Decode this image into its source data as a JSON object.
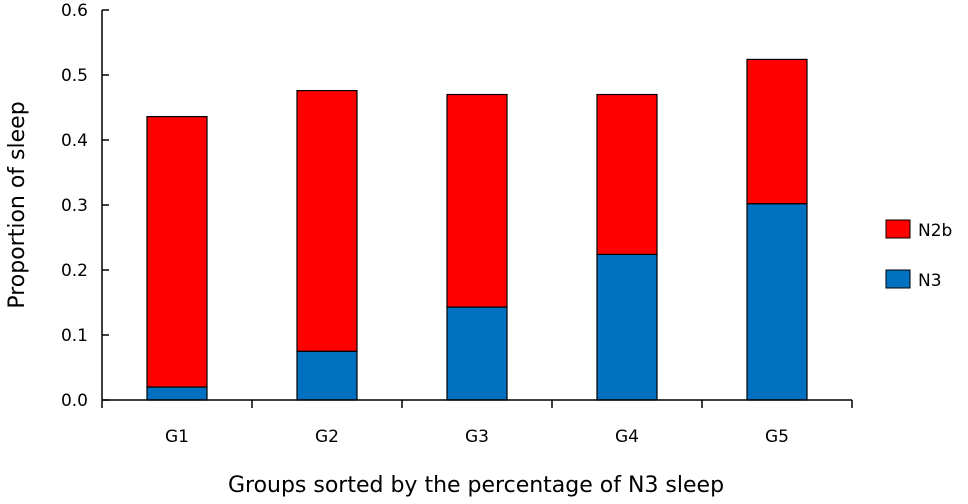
{
  "chart_data": {
    "type": "bar",
    "stacked": true,
    "categories": [
      "G1",
      "G2",
      "G3",
      "G4",
      "G5"
    ],
    "series": [
      {
        "name": "N3",
        "color": "#0070C0",
        "values": [
          0.02,
          0.075,
          0.143,
          0.224,
          0.302
        ]
      },
      {
        "name": "N2b",
        "color": "#FF0000",
        "values": [
          0.416,
          0.401,
          0.327,
          0.246,
          0.222
        ]
      }
    ],
    "title": "",
    "xlabel": "Groups sorted by the percentage of N3 sleep",
    "ylabel": "Proportion of sleep",
    "ylim": [
      0,
      0.6
    ],
    "yticks": [
      "0.0",
      "0.1",
      "0.2",
      "0.3",
      "0.4",
      "0.5",
      "0.6"
    ],
    "legend": {
      "placement": "right",
      "entries": [
        "N2b",
        "N3"
      ]
    },
    "grid": false
  }
}
